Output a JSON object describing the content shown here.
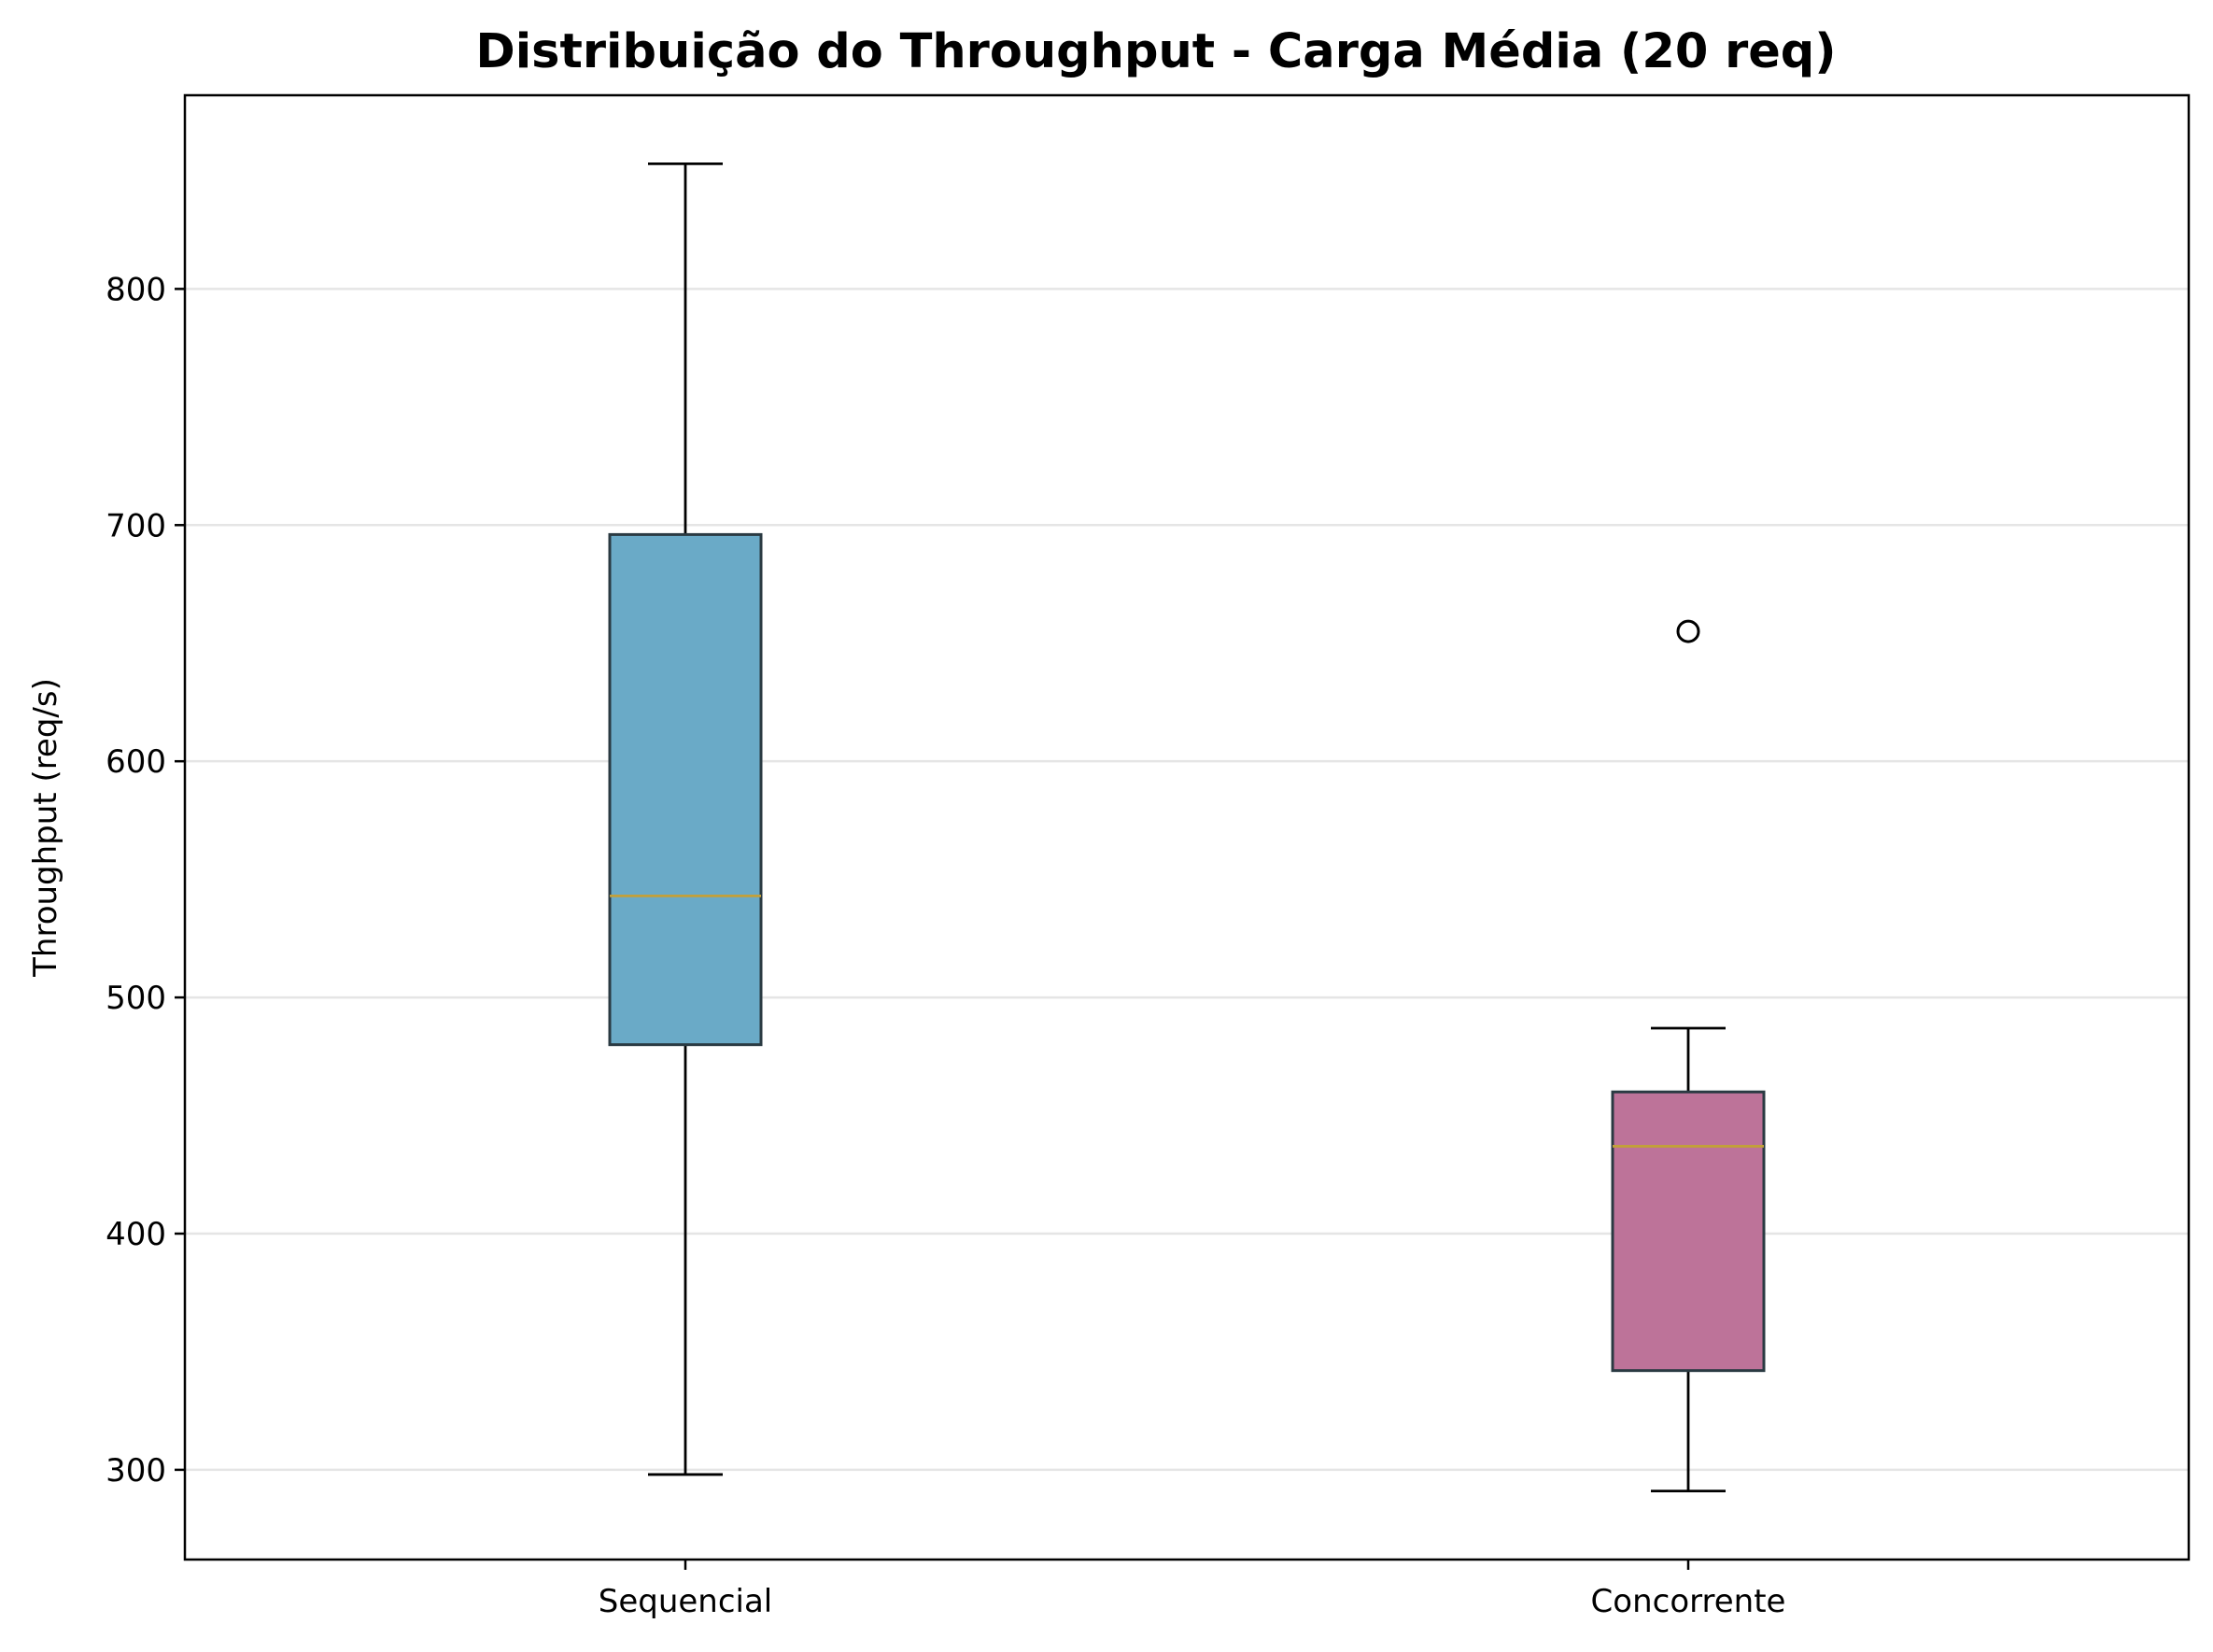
{
  "chart_data": {
    "type": "boxplot",
    "title": "Distribuição do Throughput - Carga Média (20 req)",
    "xlabel": "",
    "ylabel": "Throughput (req/s)",
    "ylim": [
      262,
      882
    ],
    "yticks": [
      300,
      400,
      500,
      600,
      700,
      800
    ],
    "grid": "y",
    "categories": [
      "Sequencial",
      "Concorrente"
    ],
    "series": [
      {
        "whisker_low": 298,
        "q1": 480,
        "median": 543,
        "q3": 696,
        "whisker_high": 853,
        "outliers": [],
        "color": "#6aaac7"
      },
      {
        "whisker_low": 291,
        "q1": 342,
        "median": 437,
        "q3": 460,
        "whisker_high": 487,
        "outliers": [
          655
        ],
        "color": "#bd7399"
      }
    ],
    "median_color": "#c2a03a",
    "box_edge_color": "#2a3a42",
    "grid_color": "#e5e5e5"
  }
}
